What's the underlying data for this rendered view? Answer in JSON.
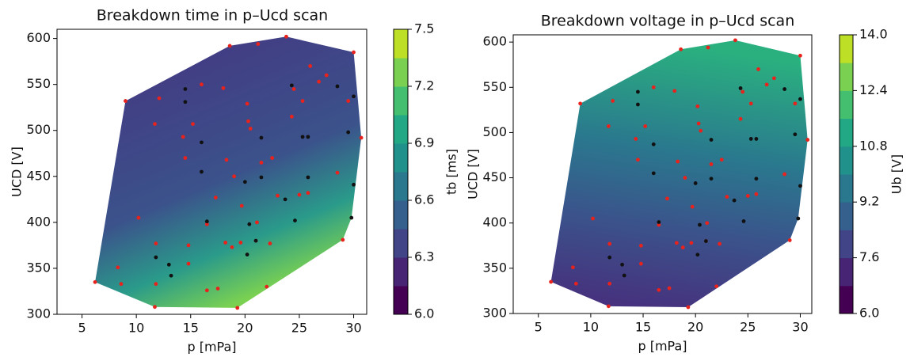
{
  "chart_data": [
    {
      "type": "contour-scatter",
      "title": "Breakdown time in p–Ucd scan",
      "x_label": "p [mPa]",
      "y_label": "UCD [V]",
      "colorbar_label": "tb [ms]",
      "xlim": [
        2.7,
        31.2
      ],
      "xticks": [
        5,
        10,
        15,
        20,
        25,
        30
      ],
      "ylim": [
        300,
        610
      ],
      "yticks": [
        300,
        350,
        400,
        450,
        500,
        550,
        600
      ],
      "zlim": [
        6,
        7.5
      ],
      "zticks": [
        {
          "value": 6,
          "label": "6.0"
        },
        6.3,
        6.6,
        6.9,
        7.2,
        7.5
      ],
      "colormap": [
        "#440154",
        "#482475",
        "#414487",
        "#355f8d",
        "#2a788e",
        "#21918c",
        "#22a884",
        "#44bf70",
        "#7ad151",
        "#bddf26"
      ],
      "series": [
        {
          "color": "#e8221c",
          "x": [
            6.2,
            8.3,
            8.6,
            9.0,
            10.2,
            11.7,
            11.7,
            11.8,
            11.8,
            12.1,
            14.3,
            14.5,
            14.8,
            14.8,
            15.2,
            16.0,
            16.5,
            16.5,
            17.3,
            17.5,
            18.0,
            18.2,
            18.3,
            18.6,
            18.8,
            19.0,
            19.3,
            19.6,
            19.7,
            20.2,
            20.3,
            20.5,
            21.0,
            21.1,
            21.2,
            21.5,
            22.0,
            22.3,
            22.5,
            23.0,
            23.8,
            24.3,
            24.5,
            25.0,
            25.3,
            25.8,
            26.0,
            26.8,
            27.5,
            28.5,
            29.0,
            29.5,
            30.0,
            30.7
          ],
          "y": [
            335,
            351,
            333,
            532,
            405,
            308,
            507,
            377,
            333,
            535,
            493,
            470,
            375,
            355,
            507,
            550,
            398,
            326,
            427,
            328,
            546,
            378,
            468,
            592,
            373,
            450,
            307,
            378,
            418,
            529,
            510,
            502,
            380,
            400,
            594,
            465,
            330,
            377,
            470,
            429,
            602,
            515,
            545,
            430,
            532,
            432,
            570,
            553,
            560,
            454,
            381,
            532,
            585,
            492
          ]
        },
        {
          "color": "#111111",
          "x": [
            11.8,
            13.0,
            13.2,
            14.5,
            14.5,
            16.0,
            16.0,
            16.5,
            20.0,
            20.2,
            20.4,
            21.0,
            21.5,
            21.5,
            23.7,
            24.3,
            24.6,
            25.3,
            25.8,
            25.8,
            28.5,
            29.5,
            29.8,
            30.0,
            30.0
          ],
          "y": [
            362,
            354,
            342,
            545,
            531,
            487,
            455,
            401,
            444,
            365,
            398,
            380,
            492,
            449,
            425,
            549,
            402,
            493,
            449,
            493,
            548,
            498,
            405,
            441,
            537
          ]
        }
      ]
    },
    {
      "type": "contour-scatter",
      "title": "Breakdown voltage in p–Ucd scan",
      "x_label": "p [mPa]",
      "y_label": "UCD [V]",
      "colorbar_label": "Ub [V]",
      "xlim": [
        2.6,
        31.1
      ],
      "xticks": [
        5,
        10,
        15,
        20,
        25,
        30
      ],
      "ylim": [
        300,
        608
      ],
      "yticks": [
        300,
        350,
        400,
        450,
        500,
        550,
        600
      ],
      "zlim": [
        6,
        14
      ],
      "zticks": [
        {
          "value": 6,
          "label": "6.0"
        },
        7.6,
        9.2,
        10.8,
        12.4,
        {
          "value": 14,
          "label": "14.0"
        }
      ],
      "colormap": [
        "#440154",
        "#482475",
        "#414487",
        "#355f8d",
        "#2a788e",
        "#21918c",
        "#22a884",
        "#44bf70",
        "#7ad151",
        "#bddf26"
      ],
      "series": [
        {
          "color": "#e8221c",
          "x": [
            6.2,
            8.3,
            8.6,
            9.0,
            10.2,
            11.7,
            11.7,
            11.8,
            11.8,
            12.1,
            14.3,
            14.5,
            14.8,
            14.8,
            15.2,
            16.0,
            16.5,
            16.5,
            17.3,
            17.5,
            18.0,
            18.2,
            18.3,
            18.6,
            18.8,
            19.0,
            19.3,
            19.6,
            19.7,
            20.2,
            20.3,
            20.5,
            21.0,
            21.1,
            21.2,
            21.5,
            22.0,
            22.3,
            22.5,
            23.0,
            23.8,
            24.3,
            24.5,
            25.0,
            25.3,
            25.8,
            26.0,
            26.8,
            27.5,
            28.5,
            29.0,
            29.5,
            30.0,
            30.7
          ],
          "y": [
            335,
            351,
            333,
            532,
            405,
            308,
            507,
            377,
            333,
            535,
            493,
            470,
            375,
            355,
            507,
            550,
            398,
            326,
            427,
            328,
            546,
            378,
            468,
            592,
            373,
            450,
            307,
            378,
            418,
            529,
            510,
            502,
            380,
            400,
            594,
            465,
            330,
            377,
            470,
            429,
            602,
            515,
            545,
            430,
            532,
            432,
            570,
            553,
            560,
            454,
            381,
            532,
            585,
            492
          ]
        },
        {
          "color": "#111111",
          "x": [
            11.8,
            13.0,
            13.2,
            14.5,
            14.5,
            16.0,
            16.0,
            16.5,
            20.0,
            20.2,
            20.4,
            21.0,
            21.5,
            21.5,
            23.7,
            24.3,
            24.6,
            25.3,
            25.8,
            25.8,
            28.5,
            29.5,
            29.8,
            30.0,
            30.0
          ],
          "y": [
            362,
            354,
            342,
            545,
            531,
            487,
            455,
            401,
            444,
            365,
            398,
            380,
            492,
            449,
            425,
            549,
            402,
            493,
            449,
            493,
            548,
            498,
            405,
            441,
            537
          ]
        }
      ]
    }
  ]
}
